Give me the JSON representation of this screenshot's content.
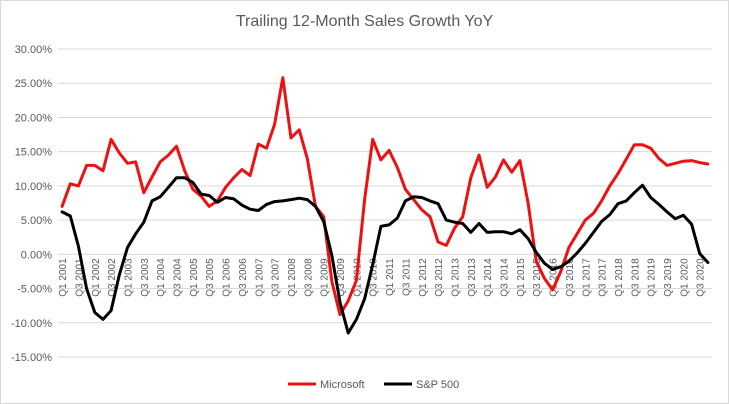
{
  "chart_data": {
    "type": "line",
    "title": "Trailing 12-Month Sales Growth YoY",
    "xlabel": "",
    "ylabel": "",
    "ylim": [
      -0.15,
      0.3
    ],
    "y_ticks": [
      "30.00%",
      "25.00%",
      "20.00%",
      "15.00%",
      "10.00%",
      "5.00%",
      "0.00%",
      "-5.00%",
      "-10.00%",
      "-15.00%"
    ],
    "y_tick_values": [
      0.3,
      0.25,
      0.2,
      0.15,
      0.1,
      0.05,
      0.0,
      -0.05,
      -0.1,
      -0.15
    ],
    "x_tick_labels": [
      "Q1 2001",
      "Q3 2001",
      "Q1 2002",
      "Q3 2002",
      "Q1 2003",
      "Q3 2003",
      "Q1 2004",
      "Q3 2004",
      "Q1 2005",
      "Q3 2005",
      "Q1 2006",
      "Q3 2006",
      "Q1 2007",
      "Q3 2007",
      "Q1 2008",
      "Q3 2008",
      "Q1 2009",
      "Q3 2009",
      "Q1 2010",
      "Q3 2010",
      "Q1 2011",
      "Q3 2011",
      "Q1 2012",
      "Q3 2012",
      "Q1 2013",
      "Q3 2013",
      "Q1 2014",
      "Q3 2014",
      "Q1 2015",
      "Q3 2015",
      "Q1 2016",
      "Q3 2016",
      "Q1 2017",
      "Q3 2017",
      "Q1 2018",
      "Q3 2018",
      "Q1 2019",
      "Q3 2019",
      "Q1 2020",
      "Q3 2020"
    ],
    "grid": true,
    "legend_position": "bottom",
    "series": [
      {
        "name": "Microsoft",
        "color": "#ee1111",
        "values": [
          0.07,
          0.103,
          0.1,
          0.13,
          0.13,
          0.122,
          0.168,
          0.148,
          0.133,
          0.135,
          0.09,
          0.113,
          0.135,
          0.145,
          0.158,
          0.122,
          0.095,
          0.085,
          0.07,
          0.078,
          0.098,
          0.112,
          0.124,
          0.115,
          0.161,
          0.155,
          0.19,
          0.258,
          0.17,
          0.182,
          0.14,
          0.07,
          0.055,
          -0.04,
          -0.088,
          -0.068,
          -0.038,
          0.08,
          0.168,
          0.138,
          0.152,
          0.127,
          0.095,
          0.08,
          0.065,
          0.055,
          0.018,
          0.013,
          0.038,
          0.055,
          0.112,
          0.145,
          0.098,
          0.113,
          0.138,
          0.12,
          0.137,
          0.075,
          -0.01,
          -0.035,
          -0.052,
          -0.025,
          0.01,
          0.03,
          0.05,
          0.06,
          0.078,
          0.1,
          0.118,
          0.139,
          0.16,
          0.16,
          0.155,
          0.14,
          0.13,
          0.133,
          0.136,
          0.137,
          0.134,
          0.132
        ]
      },
      {
        "name": "S&P 500",
        "color": "#000000",
        "values": [
          0.062,
          0.056,
          0.012,
          -0.05,
          -0.085,
          -0.095,
          -0.082,
          -0.03,
          0.01,
          0.03,
          0.047,
          0.078,
          0.084,
          0.098,
          0.112,
          0.112,
          0.105,
          0.088,
          0.086,
          0.076,
          0.083,
          0.081,
          0.072,
          0.066,
          0.064,
          0.073,
          0.077,
          0.078,
          0.08,
          0.082,
          0.08,
          0.07,
          0.048,
          -0.002,
          -0.07,
          -0.115,
          -0.095,
          -0.065,
          -0.015,
          0.041,
          0.043,
          0.053,
          0.078,
          0.084,
          0.083,
          0.078,
          0.074,
          0.05,
          0.047,
          0.045,
          0.032,
          0.045,
          0.032,
          0.033,
          0.033,
          0.03,
          0.036,
          0.023,
          0.003,
          -0.013,
          -0.022,
          -0.018,
          -0.01,
          0.002,
          0.016,
          0.032,
          0.048,
          0.058,
          0.074,
          0.078,
          0.09,
          0.101,
          0.083,
          0.073,
          0.062,
          0.052,
          0.057,
          0.044,
          0.001,
          -0.012
        ]
      }
    ]
  }
}
